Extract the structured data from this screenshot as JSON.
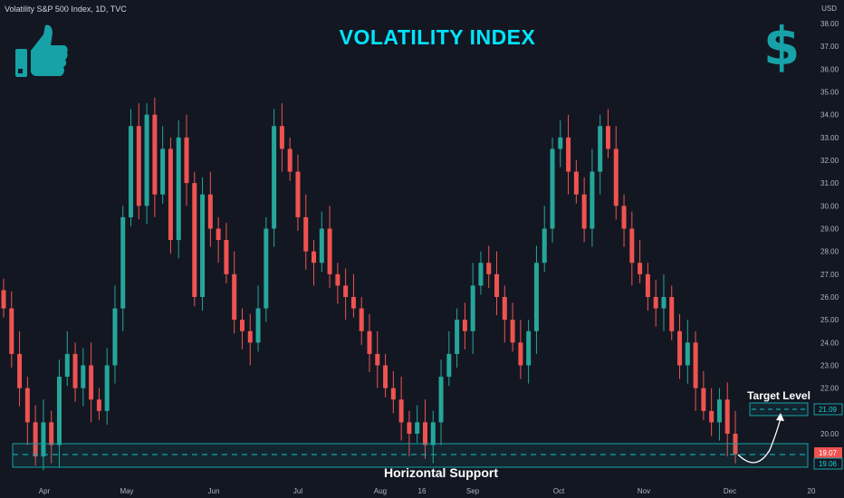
{
  "header": {
    "symbol": "Volatility S&P 500 Index, 1D, TVC",
    "title": "VOLATILITY INDEX",
    "currency": "USD",
    "dollar_glyph": "$"
  },
  "icons": {
    "thumb": "thumbs-up-icon",
    "dollar": "dollar-sign-icon"
  },
  "colors": {
    "background": "#131722",
    "bull": "#26a69a",
    "bear": "#ef5350",
    "accent": "#00e5ff",
    "support": "#17a2a7",
    "text": "#d1d4dc",
    "axis_text": "#b2b5be"
  },
  "chart_data": {
    "type": "candlestick",
    "y_axis": {
      "ticks": [
        "38.00",
        "37.00",
        "36.00",
        "35.00",
        "34.00",
        "33.00",
        "32.00",
        "31.00",
        "30.00",
        "29.00",
        "28.00",
        "27.00",
        "26.00",
        "25.00",
        "24.00",
        "23.00",
        "22.00",
        "21.00",
        "20.00"
      ],
      "ylim": [
        18.4,
        38.3
      ]
    },
    "x_axis": {
      "labels": [
        "Apr",
        "May",
        "Jun",
        "Jul",
        "Aug",
        "16",
        "Sep",
        "Oct",
        "Nov",
        "Dec",
        "20"
      ]
    },
    "series_close": [
      25.5,
      23.5,
      22.0,
      20.5,
      19.0,
      20.5,
      19.5,
      22.5,
      23.5,
      22.0,
      23.0,
      21.5,
      21.0,
      23.0,
      25.5,
      29.5,
      33.5,
      30.0,
      34.0,
      30.5,
      32.5,
      28.5,
      33.0,
      31.0,
      26.0,
      30.5,
      29.0,
      28.5,
      27.0,
      25.0,
      24.5,
      24.0,
      25.5,
      29.0,
      33.5,
      32.5,
      31.5,
      29.5,
      28.0,
      27.5,
      29.0,
      27.0,
      26.5,
      26.0,
      25.5,
      24.5,
      23.5,
      23.0,
      22.0,
      21.5,
      20.5,
      20.0,
      20.5,
      19.5,
      20.5,
      22.5,
      23.5,
      25.0,
      24.5,
      26.5,
      27.5,
      27.0,
      26.0,
      25.0,
      24.0,
      23.0,
      24.5,
      27.5,
      29.0,
      32.5,
      33.0,
      31.5,
      30.5,
      29.0,
      31.5,
      33.5,
      32.5,
      30.0,
      29.0,
      27.5,
      27.0,
      26.0,
      25.5,
      26.0,
      24.5,
      23.0,
      24.0,
      22.0,
      21.0,
      20.5,
      21.5,
      20.0,
      19.1
    ],
    "support_zone": {
      "label": "Horizontal Support",
      "high": 19.6,
      "low": 18.6,
      "level": 19.06
    },
    "target_zone": {
      "label": "Target Level",
      "level": 21.09,
      "high": 21.2,
      "low": 20.85
    },
    "price_labels": {
      "last": "19.07",
      "support": "19.06",
      "target": "21.09"
    }
  }
}
